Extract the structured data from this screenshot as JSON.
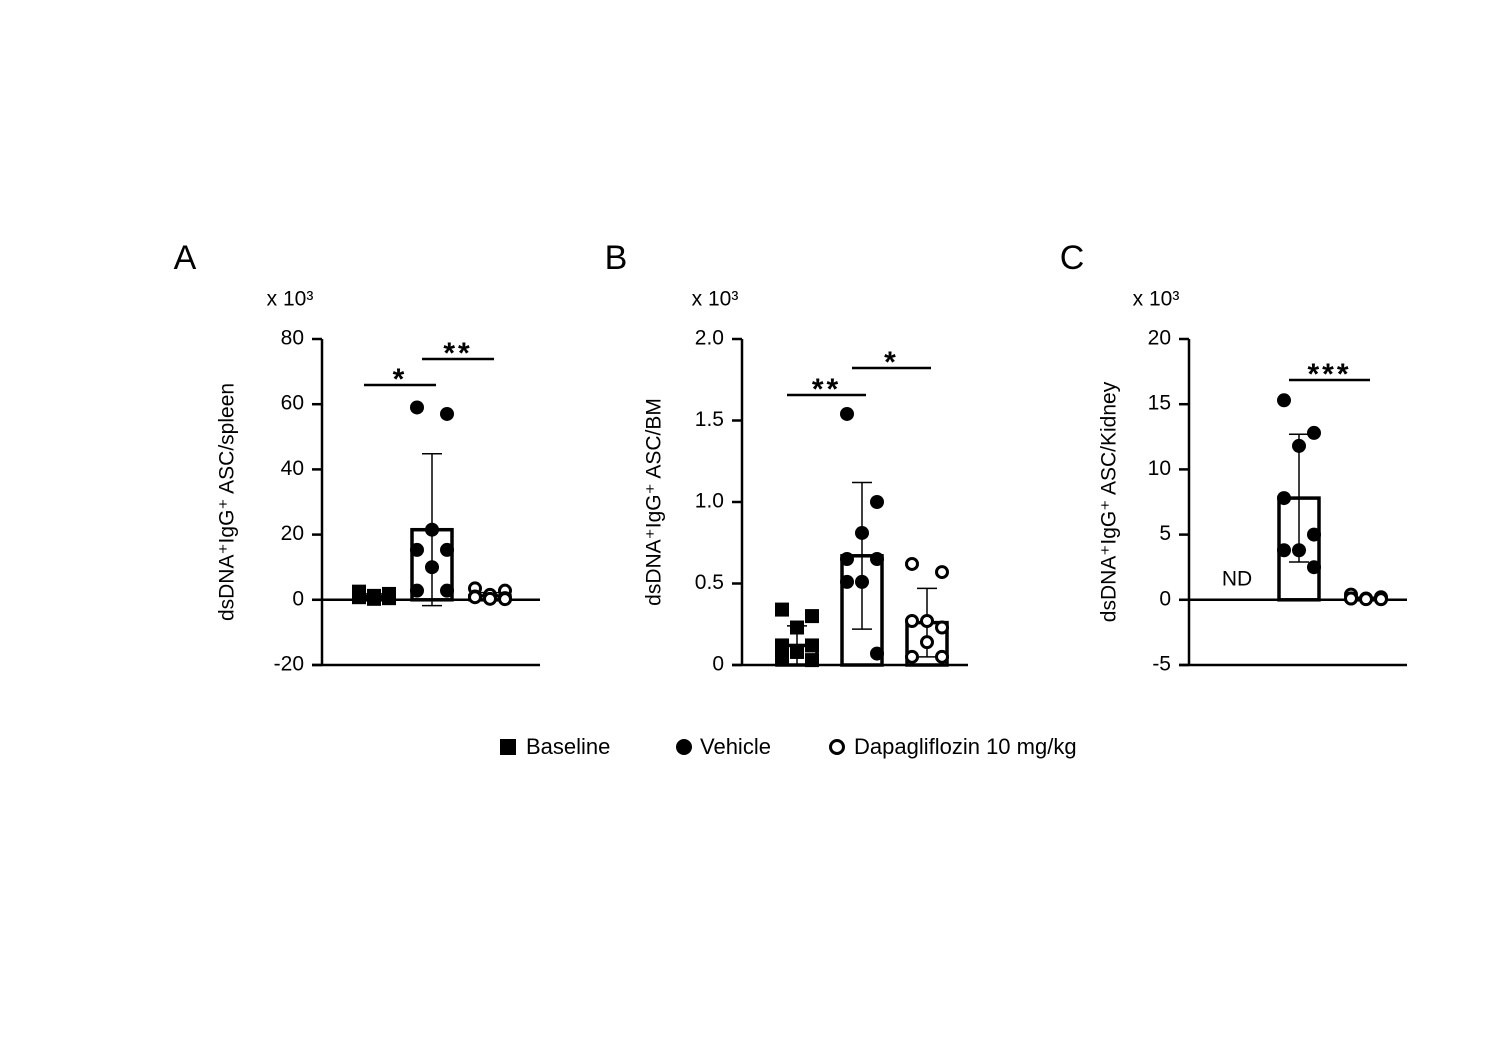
{
  "legend": {
    "names": [
      "Baseline",
      "Vehicle",
      "Dapagliflozin 10 mg/kg"
    ],
    "markers": [
      "square",
      "circle",
      "open-circle"
    ],
    "color": "#000000"
  },
  "chart_data": [
    {
      "type": "bar",
      "panel": "A",
      "y_multiplier": "x 10³",
      "ylabel": "dsDNA⁺IgG⁺ ASC/spleen",
      "ylim": [
        -20,
        80
      ],
      "yticks": [
        80,
        60,
        40,
        20,
        0,
        -20
      ],
      "values": [
        1.0,
        21.5,
        1.2
      ],
      "errors": [
        0.8,
        23.3,
        1.0
      ],
      "points": [
        [
          2.5,
          1.8,
          1.2,
          0.8,
          0.5,
          0.3,
          1.0,
          0.6
        ],
        [
          59,
          57,
          21.5,
          15.3,
          15.3,
          10,
          2.8,
          2.8
        ],
        [
          3.5,
          2.8,
          1.5,
          1.0,
          0.5,
          0.3,
          0.8,
          0.2
        ]
      ],
      "annotations": [
        {
          "text": "*",
          "from": 0,
          "to": 1
        },
        {
          "text": "**",
          "from": 1,
          "to": 2
        }
      ]
    },
    {
      "type": "bar",
      "panel": "B",
      "y_multiplier": "x 10³",
      "ylabel": "dsDNA⁺IgG⁺ ASC/BM",
      "ylim": [
        0,
        2
      ],
      "yticks": [
        {
          "value": 2,
          "label": "2.0"
        },
        1.5,
        {
          "value": 1,
          "label": "1.0"
        },
        0.5,
        0
      ],
      "values": [
        0.12,
        0.67,
        0.26
      ],
      "errors": [
        0.12,
        0.45,
        0.21
      ],
      "points": [
        [
          0.34,
          0.3,
          0.23,
          0.12,
          0.12,
          0.08,
          0.05,
          0.03
        ],
        [
          1.54,
          1.0,
          0.81,
          0.65,
          0.65,
          0.51,
          0.51,
          0.07
        ],
        [
          0.62,
          0.57,
          0.27,
          0.27,
          0.23,
          0.14,
          0.05,
          0.05
        ]
      ],
      "annotations": [
        {
          "text": "**",
          "from": 0,
          "to": 1
        },
        {
          "text": "*",
          "from": 1,
          "to": 2
        }
      ]
    },
    {
      "type": "bar",
      "panel": "C",
      "y_multiplier": "x 10³",
      "ylabel": "dsDNA⁺IgG⁺ ASC/Kidney",
      "ylim": [
        -5,
        20
      ],
      "yticks": [
        20,
        15,
        10,
        5,
        0,
        -5
      ],
      "values": [
        null,
        7.8,
        0.1
      ],
      "errors": [
        null,
        4.9,
        0.1
      ],
      "value_labels": [
        "ND",
        null,
        null
      ],
      "points": [
        [],
        [
          15.3,
          12.8,
          11.8,
          7.8,
          5.0,
          3.8,
          3.8,
          2.5
        ],
        [
          0.4,
          0.2,
          0.1,
          0.1,
          0.05,
          0.05,
          0.1,
          0.05
        ]
      ],
      "annotations": [
        {
          "text": "***",
          "from": 1,
          "to": 2
        }
      ]
    }
  ]
}
